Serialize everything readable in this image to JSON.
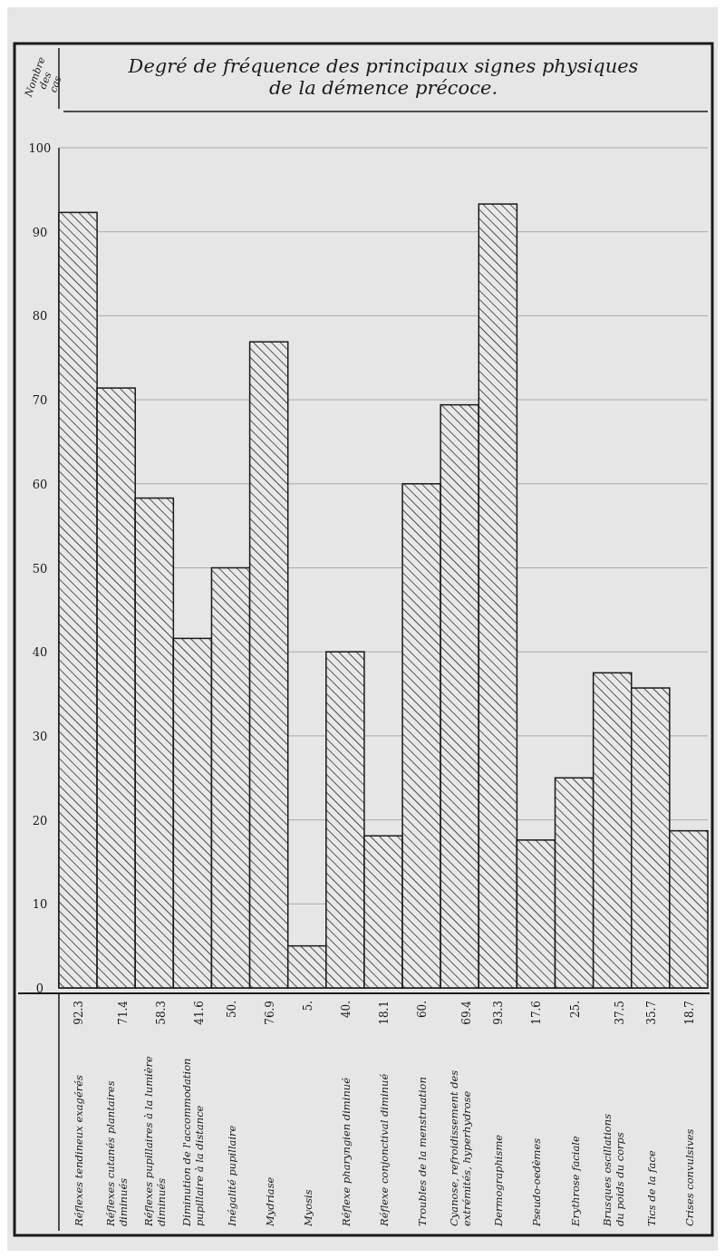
{
  "chart_data": {
    "type": "bar",
    "title": "Degré de fréquence des principaux signes physiques\nde la démence précoce.",
    "ylabel": "Nombre des cas",
    "categories": [
      "Réflexes tendineux exagérés",
      "Réflexes cutanés plantaires\ndiminués",
      "Réflexes pupillaires à la lumière\ndiminués",
      "Diminution de l'accommodation\npupillaire à la distance",
      "Inégalité pupillaire",
      "Mydriase",
      "Myosis",
      "Réflexe pharyngien diminué",
      "Réflexe conjonctival diminué",
      "Troubles de la menstruation",
      "Cyanose, refroidissement des\nextrémités, hyperhydrose",
      "Dermographisme",
      "Pseudo-oedèmes",
      "Erythrose faciale",
      "Brusques oscillations\ndu poids du corps",
      "Tics de la face",
      "Crises convulsives"
    ],
    "values": [
      92.3,
      71.4,
      58.3,
      41.6,
      50,
      76.9,
      5,
      40,
      18.1,
      60,
      69.4,
      93.3,
      17.6,
      25,
      37.5,
      35.7,
      18.7
    ],
    "value_labels": [
      "92.3",
      "71.4",
      "58.3",
      "41.6",
      "50.",
      "76.9",
      "5.",
      "40.",
      "18.1",
      "60.",
      "69.4",
      "93.3",
      "17.6",
      "25.",
      "37.5",
      "35.7",
      "18.7"
    ],
    "color": "#2a2a2a",
    "ylim": [
      0,
      100
    ],
    "yticks": [
      0,
      10,
      20,
      30,
      40,
      50,
      60,
      70,
      80,
      90,
      100
    ],
    "grid": "y"
  }
}
